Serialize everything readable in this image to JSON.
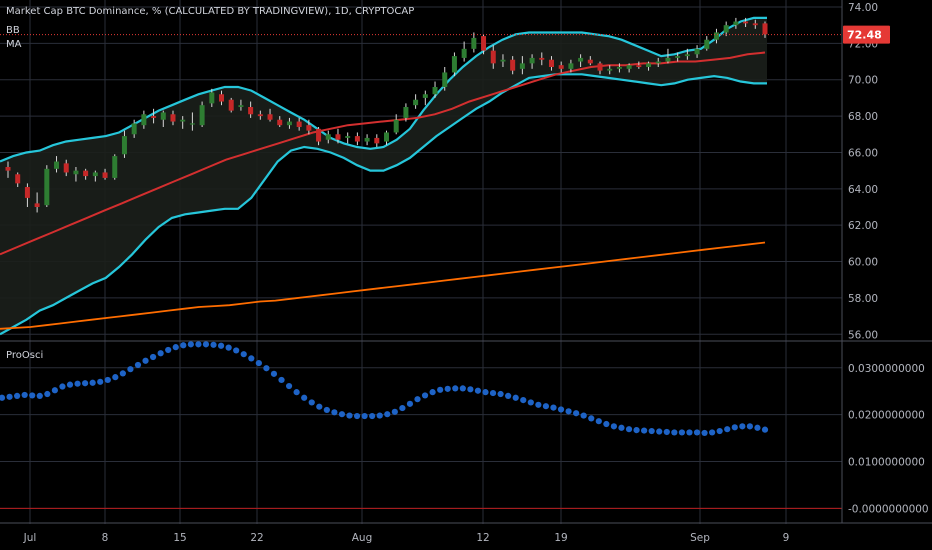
{
  "header": {
    "title": "Market Cap BTC Dominance, % (CALCULATED BY TRADINGVIEW), 1D, CRYPTOCAP",
    "indicator_bb": "BB",
    "indicator_ma": "MA",
    "osc_label": "ProOsci"
  },
  "price_badge": {
    "value": "72.48",
    "color": "#e53935"
  },
  "colors": {
    "up": "#2e7d32",
    "down": "#c62828",
    "bb": "#26c6da",
    "basis": "#d32f2f",
    "ma": "#ff6d00",
    "osc": "#1e63c6",
    "grid": "#2a2e39",
    "text": "#b2b5be"
  },
  "chart_data": [
    {
      "type": "candlestick",
      "title": "Market Cap BTC Dominance, % (CALCULATED BY TRADINGVIEW), 1D, CRYPTOCAP",
      "x_ticks": [
        "Jul",
        "8",
        "15",
        "22",
        "Aug",
        "12",
        "19",
        "Sep",
        "9"
      ],
      "y_ticks": [
        "74.00",
        "72.00",
        "70.00",
        "68.00",
        "66.00",
        "64.00",
        "62.00",
        "60.00",
        "58.00",
        "56.00"
      ],
      "ylim": [
        55.3,
        74.0
      ],
      "last_price": 72.48,
      "candles": [
        {
          "o": 65.2,
          "h": 65.5,
          "l": 64.6,
          "c": 65.0
        },
        {
          "o": 64.8,
          "h": 64.9,
          "l": 64.1,
          "c": 64.3
        },
        {
          "o": 64.1,
          "h": 64.3,
          "l": 63.0,
          "c": 63.5
        },
        {
          "o": 63.2,
          "h": 63.8,
          "l": 62.7,
          "c": 63.0
        },
        {
          "o": 63.1,
          "h": 65.3,
          "l": 63.0,
          "c": 65.1
        },
        {
          "o": 65.1,
          "h": 65.8,
          "l": 64.9,
          "c": 65.5
        },
        {
          "o": 65.4,
          "h": 65.6,
          "l": 64.7,
          "c": 64.9
        },
        {
          "o": 64.8,
          "h": 65.2,
          "l": 64.4,
          "c": 65.0
        },
        {
          "o": 65.0,
          "h": 65.1,
          "l": 64.5,
          "c": 64.7
        },
        {
          "o": 64.7,
          "h": 65.0,
          "l": 64.4,
          "c": 64.9
        },
        {
          "o": 64.9,
          "h": 65.1,
          "l": 64.5,
          "c": 64.6
        },
        {
          "o": 64.6,
          "h": 65.9,
          "l": 64.5,
          "c": 65.8
        },
        {
          "o": 65.9,
          "h": 67.2,
          "l": 65.7,
          "c": 66.9
        },
        {
          "o": 67.0,
          "h": 67.8,
          "l": 66.8,
          "c": 67.6
        },
        {
          "o": 67.5,
          "h": 68.3,
          "l": 67.3,
          "c": 68.1
        },
        {
          "o": 68.0,
          "h": 68.4,
          "l": 67.6,
          "c": 67.9
        },
        {
          "o": 67.8,
          "h": 68.3,
          "l": 67.4,
          "c": 68.2
        },
        {
          "o": 68.1,
          "h": 68.3,
          "l": 67.5,
          "c": 67.7
        },
        {
          "o": 67.7,
          "h": 68.0,
          "l": 67.3,
          "c": 67.8
        },
        {
          "o": 67.6,
          "h": 68.2,
          "l": 67.2,
          "c": 67.6
        },
        {
          "o": 67.5,
          "h": 68.8,
          "l": 67.4,
          "c": 68.6
        },
        {
          "o": 68.7,
          "h": 69.5,
          "l": 68.5,
          "c": 69.3
        },
        {
          "o": 69.2,
          "h": 69.4,
          "l": 68.6,
          "c": 68.8
        },
        {
          "o": 68.9,
          "h": 69.0,
          "l": 68.2,
          "c": 68.3
        },
        {
          "o": 68.5,
          "h": 68.9,
          "l": 68.3,
          "c": 68.6
        },
        {
          "o": 68.5,
          "h": 68.8,
          "l": 67.9,
          "c": 68.1
        },
        {
          "o": 68.1,
          "h": 68.3,
          "l": 67.8,
          "c": 68.0
        },
        {
          "o": 68.1,
          "h": 68.4,
          "l": 67.7,
          "c": 67.8
        },
        {
          "o": 67.8,
          "h": 68.0,
          "l": 67.4,
          "c": 67.5
        },
        {
          "o": 67.5,
          "h": 67.9,
          "l": 67.3,
          "c": 67.7
        },
        {
          "o": 67.7,
          "h": 67.9,
          "l": 67.2,
          "c": 67.4
        },
        {
          "o": 67.5,
          "h": 67.8,
          "l": 67.0,
          "c": 67.2
        },
        {
          "o": 67.3,
          "h": 67.4,
          "l": 66.4,
          "c": 66.6
        },
        {
          "o": 66.7,
          "h": 67.2,
          "l": 66.5,
          "c": 67.0
        },
        {
          "o": 67.0,
          "h": 67.3,
          "l": 66.5,
          "c": 66.7
        },
        {
          "o": 66.8,
          "h": 67.1,
          "l": 66.5,
          "c": 66.9
        },
        {
          "o": 66.9,
          "h": 67.1,
          "l": 66.4,
          "c": 66.6
        },
        {
          "o": 66.6,
          "h": 67.0,
          "l": 66.4,
          "c": 66.8
        },
        {
          "o": 66.8,
          "h": 67.0,
          "l": 66.3,
          "c": 66.5
        },
        {
          "o": 66.6,
          "h": 67.2,
          "l": 66.4,
          "c": 67.1
        },
        {
          "o": 67.1,
          "h": 68.1,
          "l": 67.0,
          "c": 67.8
        },
        {
          "o": 67.9,
          "h": 68.7,
          "l": 67.7,
          "c": 68.5
        },
        {
          "o": 68.6,
          "h": 69.2,
          "l": 68.4,
          "c": 68.9
        },
        {
          "o": 69.0,
          "h": 69.4,
          "l": 68.6,
          "c": 69.2
        },
        {
          "o": 69.2,
          "h": 69.9,
          "l": 69.0,
          "c": 69.6
        },
        {
          "o": 69.6,
          "h": 70.7,
          "l": 69.4,
          "c": 70.4
        },
        {
          "o": 70.4,
          "h": 71.5,
          "l": 70.2,
          "c": 71.3
        },
        {
          "o": 71.2,
          "h": 72.1,
          "l": 71.0,
          "c": 71.7
        },
        {
          "o": 71.7,
          "h": 72.6,
          "l": 71.5,
          "c": 72.3
        },
        {
          "o": 72.4,
          "h": 72.5,
          "l": 71.4,
          "c": 71.6
        },
        {
          "o": 71.6,
          "h": 71.9,
          "l": 70.6,
          "c": 70.9
        },
        {
          "o": 71.0,
          "h": 71.4,
          "l": 70.7,
          "c": 71.1
        },
        {
          "o": 71.1,
          "h": 71.3,
          "l": 70.3,
          "c": 70.5
        },
        {
          "o": 70.6,
          "h": 71.3,
          "l": 70.3,
          "c": 70.9
        },
        {
          "o": 70.9,
          "h": 71.4,
          "l": 70.6,
          "c": 71.2
        },
        {
          "o": 71.2,
          "h": 71.5,
          "l": 70.8,
          "c": 71.1
        },
        {
          "o": 71.1,
          "h": 71.3,
          "l": 70.5,
          "c": 70.7
        },
        {
          "o": 70.8,
          "h": 71.0,
          "l": 70.4,
          "c": 70.6
        },
        {
          "o": 70.6,
          "h": 71.1,
          "l": 70.4,
          "c": 70.9
        },
        {
          "o": 71.0,
          "h": 71.4,
          "l": 70.7,
          "c": 71.2
        },
        {
          "o": 71.1,
          "h": 71.3,
          "l": 70.8,
          "c": 70.9
        },
        {
          "o": 70.9,
          "h": 71.0,
          "l": 70.3,
          "c": 70.5
        },
        {
          "o": 70.5,
          "h": 70.8,
          "l": 70.3,
          "c": 70.6
        },
        {
          "o": 70.6,
          "h": 70.9,
          "l": 70.4,
          "c": 70.7
        },
        {
          "o": 70.6,
          "h": 70.9,
          "l": 70.4,
          "c": 70.8
        },
        {
          "o": 70.8,
          "h": 71.0,
          "l": 70.6,
          "c": 70.7
        },
        {
          "o": 70.7,
          "h": 71.0,
          "l": 70.5,
          "c": 70.9
        },
        {
          "o": 70.9,
          "h": 71.2,
          "l": 70.7,
          "c": 71.0
        },
        {
          "o": 71.0,
          "h": 71.7,
          "l": 70.9,
          "c": 71.2
        },
        {
          "o": 71.2,
          "h": 71.5,
          "l": 71.0,
          "c": 71.3
        },
        {
          "o": 71.3,
          "h": 71.7,
          "l": 71.1,
          "c": 71.4
        },
        {
          "o": 71.4,
          "h": 71.9,
          "l": 71.2,
          "c": 71.7
        },
        {
          "o": 71.7,
          "h": 72.4,
          "l": 71.6,
          "c": 72.2
        },
        {
          "o": 72.2,
          "h": 72.8,
          "l": 72.0,
          "c": 72.6
        },
        {
          "o": 72.6,
          "h": 73.2,
          "l": 72.4,
          "c": 73.0
        },
        {
          "o": 73.0,
          "h": 73.4,
          "l": 72.8,
          "c": 73.2
        },
        {
          "o": 73.2,
          "h": 73.4,
          "l": 72.9,
          "c": 73.1
        },
        {
          "o": 73.1,
          "h": 73.3,
          "l": 72.8,
          "c": 73.0
        },
        {
          "o": 73.1,
          "h": 73.2,
          "l": 72.3,
          "c": 72.5
        }
      ],
      "series": [
        {
          "name": "BB",
          "values": [
            [
              65.5,
              56.0
            ],
            [
              65.8,
              56.4
            ],
            [
              66.0,
              56.8
            ],
            [
              66.1,
              57.3
            ],
            [
              66.4,
              57.6
            ],
            [
              66.6,
              58.0
            ],
            [
              66.7,
              58.4
            ],
            [
              66.8,
              58.8
            ],
            [
              66.9,
              59.1
            ],
            [
              67.1,
              59.7
            ],
            [
              67.5,
              60.4
            ],
            [
              67.9,
              61.2
            ],
            [
              68.3,
              61.9
            ],
            [
              68.6,
              62.4
            ],
            [
              68.9,
              62.6
            ],
            [
              69.2,
              62.7
            ],
            [
              69.4,
              62.8
            ],
            [
              69.6,
              62.9
            ],
            [
              69.6,
              62.9
            ],
            [
              69.4,
              63.5
            ],
            [
              69.0,
              64.5
            ],
            [
              68.6,
              65.5
            ],
            [
              68.2,
              66.1
            ],
            [
              67.8,
              66.3
            ],
            [
              67.3,
              66.2
            ],
            [
              66.8,
              66.0
            ],
            [
              66.5,
              65.7
            ],
            [
              66.3,
              65.3
            ],
            [
              66.2,
              65.0
            ],
            [
              66.3,
              65.0
            ],
            [
              66.7,
              65.3
            ],
            [
              67.3,
              65.7
            ],
            [
              68.3,
              66.3
            ],
            [
              69.2,
              66.9
            ],
            [
              70.0,
              67.4
            ],
            [
              70.7,
              67.9
            ],
            [
              71.3,
              68.4
            ],
            [
              71.8,
              68.8
            ],
            [
              72.2,
              69.3
            ],
            [
              72.5,
              69.7
            ],
            [
              72.6,
              70.1
            ],
            [
              72.6,
              70.2
            ],
            [
              72.6,
              70.3
            ],
            [
              72.6,
              70.3
            ],
            [
              72.6,
              70.3
            ],
            [
              72.5,
              70.2
            ],
            [
              72.4,
              70.1
            ],
            [
              72.2,
              70.0
            ],
            [
              71.9,
              69.9
            ],
            [
              71.6,
              69.8
            ],
            [
              71.3,
              69.7
            ],
            [
              71.4,
              69.8
            ],
            [
              71.6,
              70.0
            ],
            [
              71.7,
              70.1
            ],
            [
              72.2,
              70.2
            ],
            [
              72.8,
              70.1
            ],
            [
              73.2,
              69.9
            ],
            [
              73.4,
              69.8
            ],
            [
              73.4,
              69.8
            ]
          ]
        },
        {
          "name": "MA",
          "values": [
            56.3,
            56.35,
            56.4,
            56.5,
            56.6,
            56.7,
            56.8,
            56.9,
            57.0,
            57.1,
            57.2,
            57.3,
            57.4,
            57.5,
            57.55,
            57.6,
            57.7,
            57.8,
            57.85,
            57.95,
            58.05,
            58.15,
            58.25,
            58.35,
            58.45,
            58.55,
            58.65,
            58.75,
            58.85,
            58.95,
            59.05,
            59.15,
            59.25,
            59.35,
            59.45,
            59.55,
            59.65,
            59.75,
            59.85,
            59.95,
            60.05,
            60.15,
            60.25,
            60.35,
            60.45,
            60.55,
            60.65,
            60.75,
            60.85,
            60.95,
            61.05
          ]
        },
        {
          "name": "basis",
          "values": [
            60.4,
            60.8,
            61.2,
            61.6,
            62.0,
            62.4,
            62.8,
            63.2,
            63.6,
            64.0,
            64.4,
            64.8,
            65.2,
            65.6,
            65.9,
            66.2,
            66.5,
            66.8,
            67.1,
            67.3,
            67.5,
            67.6,
            67.7,
            67.8,
            67.9,
            68.1,
            68.4,
            68.8,
            69.1,
            69.4,
            69.7,
            70.0,
            70.3,
            70.5,
            70.7,
            70.8,
            70.8,
            70.9,
            70.9,
            71.0,
            71.0,
            71.1,
            71.2,
            71.4,
            71.5
          ]
        }
      ]
    },
    {
      "type": "scatter",
      "title": "ProOsci",
      "y_ticks": [
        "0.0300000000",
        "0.0200000000",
        "0.0100000000",
        "-0.0000000000"
      ],
      "ylim": [
        -0.0012,
        0.0355
      ],
      "values": [
        0.0236,
        0.0238,
        0.024,
        0.0242,
        0.0241,
        0.024,
        0.0244,
        0.0252,
        0.026,
        0.0264,
        0.0266,
        0.0267,
        0.0268,
        0.027,
        0.0274,
        0.028,
        0.0288,
        0.0297,
        0.0306,
        0.0315,
        0.0323,
        0.0331,
        0.0338,
        0.0344,
        0.0348,
        0.035,
        0.035,
        0.035,
        0.0349,
        0.0347,
        0.0343,
        0.0337,
        0.0329,
        0.032,
        0.031,
        0.0299,
        0.0287,
        0.0274,
        0.0261,
        0.0248,
        0.0236,
        0.0226,
        0.0217,
        0.021,
        0.0205,
        0.0201,
        0.0198,
        0.0197,
        0.0197,
        0.0197,
        0.0198,
        0.0201,
        0.0206,
        0.0214,
        0.0223,
        0.0233,
        0.0241,
        0.0248,
        0.0253,
        0.0255,
        0.0256,
        0.0256,
        0.0254,
        0.0251,
        0.0248,
        0.0246,
        0.0244,
        0.024,
        0.0236,
        0.0231,
        0.0226,
        0.0221,
        0.0218,
        0.0215,
        0.0211,
        0.0207,
        0.0203,
        0.0198,
        0.0192,
        0.0186,
        0.018,
        0.0175,
        0.0172,
        0.0169,
        0.0167,
        0.0166,
        0.0165,
        0.0164,
        0.0163,
        0.0162,
        0.0162,
        0.0162,
        0.0162,
        0.0161,
        0.0162,
        0.0165,
        0.0169,
        0.0173,
        0.0175,
        0.0175,
        0.0172,
        0.0168
      ]
    }
  ]
}
